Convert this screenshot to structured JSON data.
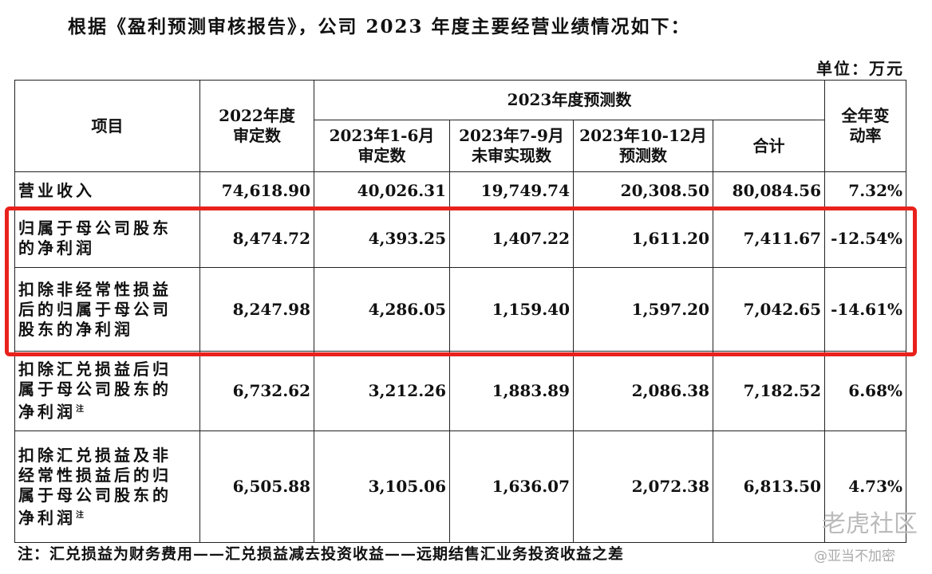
{
  "header": {
    "title": "根据《盈利预测审核报告》，公司 2023 年度主要经营业绩情况如下：",
    "unit": "单位：万元"
  },
  "table": {
    "headers": {
      "item": "项目",
      "y2022": [
        "2022年度",
        "审定数"
      ],
      "forecast": "2023年度预测数",
      "sub": [
        [
          "2023年1-6月",
          "审定数"
        ],
        [
          "2023年7-9月",
          "未审实现数"
        ],
        [
          "2023年10-12月",
          "预测数"
        ]
      ],
      "total": "合计",
      "change": [
        "全年变",
        "动率"
      ]
    },
    "rows": [
      {
        "label": [
          "营业收入"
        ],
        "cells": [
          "74,618.90",
          "40,026.31",
          "19,749.74",
          "20,308.50",
          "80,084.56",
          "7.32%"
        ]
      },
      {
        "label": [
          "归属于母公司股东",
          "的净利润"
        ],
        "cells": [
          "8,474.72",
          "4,393.25",
          "1,407.22",
          "1,611.20",
          "7,411.67",
          "-12.54%"
        ]
      },
      {
        "label": [
          "扣除非经常性损益",
          "后的归属于母公司",
          "股东的净利润"
        ],
        "cells": [
          "8,247.98",
          "4,286.05",
          "1,159.40",
          "1,597.20",
          "7,042.65",
          "-14.61%"
        ]
      },
      {
        "label": [
          "扣除汇兑损益后归",
          "属于母公司股东的",
          "净利润"
        ],
        "note": "注",
        "cells": [
          "6,732.62",
          "3,212.26",
          "1,883.89",
          "2,086.38",
          "7,182.52",
          "6.68%"
        ]
      },
      {
        "label": [
          "扣除汇兑损益及非",
          "经常性损益后的归",
          "属于母公司股东的",
          "净利润"
        ],
        "note": "注",
        "cells": [
          "6,505.88",
          "3,105.06",
          "1,636.07",
          "2,072.38",
          "6,813.50",
          "4.73%"
        ]
      }
    ]
  },
  "footnote": "注：汇兑损益为财务费用——汇兑损益减去投资收益——远期结售汇业务投资收益之差",
  "watermark": {
    "brand": "老虎社区",
    "author": "@亚当不加密"
  }
}
